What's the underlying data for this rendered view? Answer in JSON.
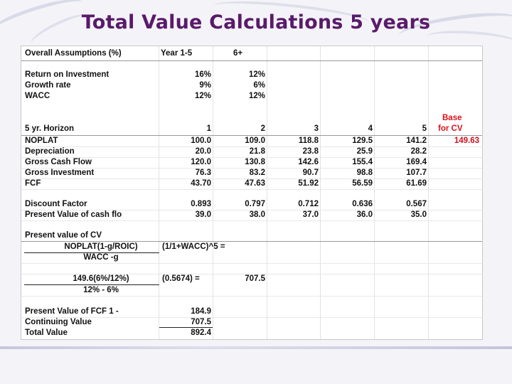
{
  "title": "Total Value Calculations 5 years",
  "assumptions": {
    "header": {
      "label": "Overall Assumptions (%)",
      "col1": "Year 1-5",
      "col2": "6+"
    },
    "rows": [
      {
        "label": "Return on Investment",
        "v1": "16%",
        "v2": "12%"
      },
      {
        "label": "Growth rate",
        "v1": "9%",
        "v2": "6%"
      },
      {
        "label": "WACC",
        "v1": "12%",
        "v2": "12%"
      }
    ]
  },
  "horizon": {
    "base_label_1": "Base",
    "base_label_2": "for CV",
    "header": {
      "label": "5 yr. Horizon",
      "years": [
        "1",
        "2",
        "3",
        "4",
        "5"
      ]
    },
    "rows": [
      {
        "label": "NOPLAT",
        "values": [
          "100.0",
          "109.0",
          "118.8",
          "129.5",
          "141.2"
        ],
        "cv": "149.63"
      },
      {
        "label": "Depreciation",
        "values": [
          "20.0",
          "21.8",
          "23.8",
          "25.9",
          "28.2"
        ]
      },
      {
        "label": "Gross Cash Flow",
        "values": [
          "120.0",
          "130.8",
          "142.6",
          "155.4",
          "169.4"
        ]
      },
      {
        "label": "Gross Investment",
        "values": [
          "76.3",
          "83.2",
          "90.7",
          "98.8",
          "107.7"
        ]
      },
      {
        "label": "FCF",
        "values": [
          "43.70",
          "47.63",
          "51.92",
          "56.59",
          "61.69"
        ]
      }
    ]
  },
  "discount": {
    "rows": [
      {
        "label": "Discount Factor",
        "values": [
          "0.893",
          "0.797",
          "0.712",
          "0.636",
          "0.567"
        ]
      },
      {
        "label": "Present Value of cash flo",
        "values": [
          "39.0",
          "38.0",
          "37.0",
          "36.0",
          "35.0"
        ]
      }
    ]
  },
  "cv": {
    "heading": "Present value of CV",
    "formula_numerator": "NOPLAT(1-g/ROIC)",
    "formula_factor": "(1/1+WACC)^5  =",
    "formula_denominator": "WACC -g",
    "calc_numerator": "149.6(6%/12%)",
    "calc_factor": "(0.5674) =",
    "calc_result": "707.5",
    "calc_denominator": "12% - 6%"
  },
  "summary": {
    "rows": [
      {
        "label": "Present Value of FCF 1 -",
        "value": "184.9"
      },
      {
        "label": "Continuing Value",
        "value": "707.5"
      },
      {
        "label": "Total Value",
        "value": "892.4"
      }
    ]
  },
  "colors": {
    "title": "#5a1a6b",
    "highlight": "#e0101a"
  }
}
